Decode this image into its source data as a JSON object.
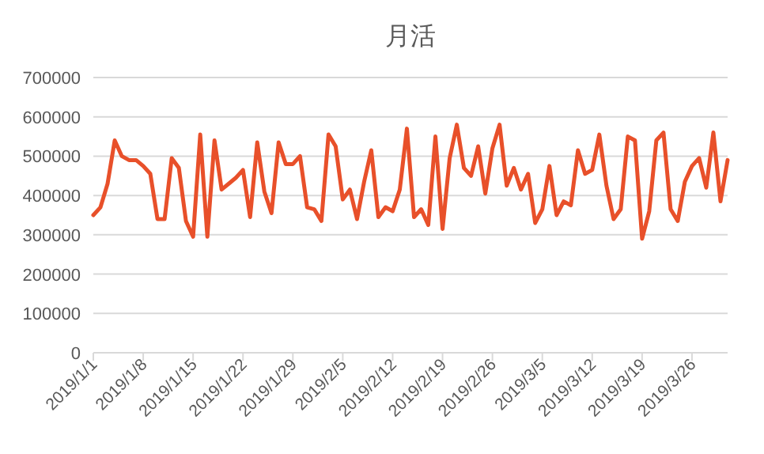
{
  "chart_data": {
    "type": "line",
    "title": "月活",
    "x": [
      "2019-01-01",
      "2019-01-02",
      "2019-01-03",
      "2019-01-04",
      "2019-01-05",
      "2019-01-06",
      "2019-01-07",
      "2019-01-08",
      "2019-01-09",
      "2019-01-10",
      "2019-01-11",
      "2019-01-12",
      "2019-01-13",
      "2019-01-14",
      "2019-01-15",
      "2019-01-16",
      "2019-01-17",
      "2019-01-18",
      "2019-01-19",
      "2019-01-20",
      "2019-01-21",
      "2019-01-22",
      "2019-01-23",
      "2019-01-24",
      "2019-01-25",
      "2019-01-26",
      "2019-01-27",
      "2019-01-28",
      "2019-01-29",
      "2019-01-30",
      "2019-01-31",
      "2019-02-01",
      "2019-02-02",
      "2019-02-03",
      "2019-02-04",
      "2019-02-05",
      "2019-02-06",
      "2019-02-07",
      "2019-02-08",
      "2019-02-09",
      "2019-02-10",
      "2019-02-11",
      "2019-02-12",
      "2019-02-13",
      "2019-02-14",
      "2019-02-15",
      "2019-02-16",
      "2019-02-17",
      "2019-02-18",
      "2019-02-19",
      "2019-02-20",
      "2019-02-21",
      "2019-02-22",
      "2019-02-23",
      "2019-02-24",
      "2019-02-25",
      "2019-02-26",
      "2019-02-27",
      "2019-02-28",
      "2019-03-01",
      "2019-03-02",
      "2019-03-03",
      "2019-03-04",
      "2019-03-05",
      "2019-03-06",
      "2019-03-07",
      "2019-03-08",
      "2019-03-09",
      "2019-03-10",
      "2019-03-11",
      "2019-03-12",
      "2019-03-13",
      "2019-03-14",
      "2019-03-15",
      "2019-03-16",
      "2019-03-17",
      "2019-03-18",
      "2019-03-19",
      "2019-03-20",
      "2019-03-21",
      "2019-03-22",
      "2019-03-23",
      "2019-03-24",
      "2019-03-25",
      "2019-03-26",
      "2019-03-27",
      "2019-03-28",
      "2019-03-29",
      "2019-03-30",
      "2019-03-31"
    ],
    "series": [
      {
        "color": "#e8502a",
        "values": [
          350000,
          370000,
          430000,
          540000,
          500000,
          490000,
          490000,
          475000,
          455000,
          340000,
          340000,
          495000,
          470000,
          335000,
          295000,
          555000,
          295000,
          540000,
          415000,
          430000,
          445000,
          465000,
          345000,
          535000,
          410000,
          355000,
          535000,
          480000,
          480000,
          500000,
          370000,
          365000,
          335000,
          555000,
          525000,
          390000,
          415000,
          340000,
          435000,
          515000,
          345000,
          370000,
          360000,
          415000,
          570000,
          345000,
          365000,
          325000,
          550000,
          315000,
          495000,
          580000,
          470000,
          450000,
          525000,
          405000,
          520000,
          580000,
          425000,
          470000,
          415000,
          455000,
          330000,
          365000,
          475000,
          350000,
          385000,
          375000,
          515000,
          455000,
          465000,
          555000,
          425000,
          340000,
          365000,
          550000,
          540000,
          290000,
          360000,
          540000,
          560000,
          365000,
          335000,
          435000,
          475000,
          495000,
          420000,
          560000,
          385000,
          490000
        ]
      }
    ],
    "xlim": [
      "2019-01-01",
      "2019-03-31"
    ],
    "xticks": [
      {
        "value": "2019-01-01",
        "label": "2019/1/1"
      },
      {
        "value": "2019-01-08",
        "label": "2019/1/8"
      },
      {
        "value": "2019-01-15",
        "label": "2019/1/15"
      },
      {
        "value": "2019-01-22",
        "label": "2019/1/22"
      },
      {
        "value": "2019-01-29",
        "label": "2019/1/29"
      },
      {
        "value": "2019-02-05",
        "label": "2019/2/5"
      },
      {
        "value": "2019-02-12",
        "label": "2019/2/12"
      },
      {
        "value": "2019-02-19",
        "label": "2019/2/19"
      },
      {
        "value": "2019-02-26",
        "label": "2019/2/26"
      },
      {
        "value": "2019-03-05",
        "label": "2019/3/5"
      },
      {
        "value": "2019-03-12",
        "label": "2019/3/12"
      },
      {
        "value": "2019-03-19",
        "label": "2019/3/19"
      },
      {
        "value": "2019-03-26",
        "label": "2019/3/26"
      }
    ],
    "ylim": [
      0,
      700000
    ],
    "yticks": [
      0,
      100000,
      200000,
      300000,
      400000,
      500000,
      600000,
      700000
    ],
    "grid": "y",
    "marker": "none",
    "line_style": "solid"
  }
}
